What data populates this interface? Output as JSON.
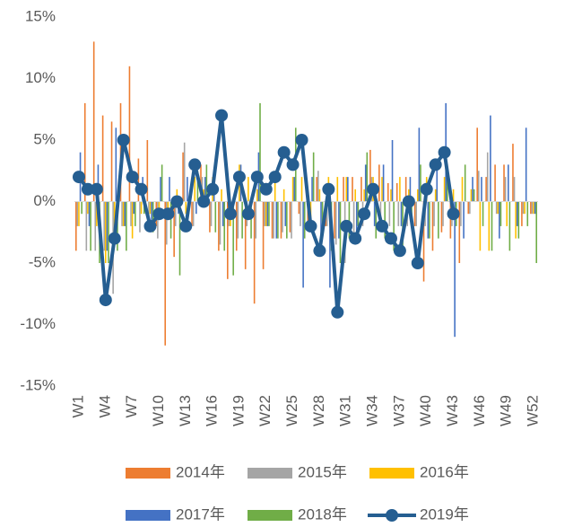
{
  "chart_data": {
    "type": "bar-line",
    "categories": [
      "W1",
      null,
      null,
      "W4",
      null,
      null,
      "W7",
      null,
      null,
      "W10",
      null,
      null,
      "W13",
      null,
      null,
      "W16",
      null,
      null,
      "W19",
      null,
      null,
      "W22",
      null,
      null,
      "W25",
      null,
      null,
      "W28",
      null,
      null,
      "W31",
      null,
      null,
      "W34",
      null,
      null,
      "W37",
      null,
      null,
      "W40",
      null,
      null,
      "W43",
      null,
      null,
      "W46",
      null,
      null,
      "W49",
      null,
      null,
      "W52"
    ],
    "ylim": [
      -15,
      15
    ],
    "yticks": [
      {
        "value": -15,
        "label": "-15%"
      },
      {
        "value": -10,
        "label": "-10%"
      },
      {
        "value": -5,
        "label": "-5%"
      },
      {
        "value": 0,
        "label": "0%"
      },
      {
        "value": 5,
        "label": "5%"
      },
      {
        "value": 10,
        "label": "10%"
      },
      {
        "value": 15,
        "label": "15%"
      }
    ],
    "grid": false,
    "legend": "bottom",
    "series": [
      {
        "name": "2014年",
        "type": "bar",
        "color": "#ED7D31",
        "values": [
          -4,
          8,
          13,
          7,
          6.5,
          8,
          11,
          3.5,
          5,
          -2,
          -11.7,
          -4.5,
          4,
          -2,
          3,
          -2.5,
          -4,
          -6.3,
          -4,
          -5.5,
          -8.3,
          -5.5,
          -3,
          -3,
          -2.5,
          -1,
          -2,
          2,
          -2,
          -3,
          2,
          2,
          2,
          4.2,
          3,
          1.5,
          1.5,
          2,
          -2,
          -6.5,
          -4,
          -2.5,
          -3,
          -5,
          -1,
          6,
          2,
          3,
          3,
          4.7,
          -2,
          -1
        ]
      },
      {
        "name": "2015年",
        "type": "bar",
        "color": "#A5A5A5",
        "values": [
          -2,
          -4,
          -4,
          -4,
          -7.5,
          -2,
          -2,
          -2.5,
          -2,
          -3,
          -3.5,
          -2,
          4.8,
          -2,
          2,
          -2,
          -3.5,
          -2,
          -3,
          -2,
          -3,
          -2,
          -3,
          -2.5,
          -3,
          -2,
          -2.5,
          2.5,
          -2,
          -3.5,
          -5,
          -3,
          -2,
          2,
          -2,
          -2,
          -2,
          -2,
          -2,
          -2,
          -2,
          -2,
          -2,
          -2,
          -1,
          2.5,
          4,
          -1,
          2,
          2,
          -1,
          -1
        ]
      },
      {
        "name": "2016年",
        "type": "bar",
        "color": "#FFC000",
        "values": [
          -2,
          -1,
          -2,
          -5,
          -2,
          -2,
          -3,
          -1,
          -1,
          -1,
          -1,
          1,
          -1,
          2,
          1,
          2,
          1,
          -2,
          3,
          2,
          1,
          -2,
          2,
          1,
          2,
          2,
          -2,
          1,
          2,
          2,
          2,
          1,
          1,
          2,
          2,
          1,
          2,
          1,
          1,
          2,
          1,
          2,
          1,
          2,
          1,
          -4,
          -4,
          -1,
          -2,
          -3,
          -1,
          -1
        ]
      },
      {
        "name": "2017年",
        "type": "bar",
        "color": "#4472C4",
        "values": [
          4,
          -2,
          3,
          -4,
          6,
          -2,
          -1,
          2,
          -2,
          2,
          2,
          -1,
          2,
          -1,
          2,
          2,
          -2,
          -1,
          3,
          -1,
          4,
          -2,
          -3,
          -2,
          2,
          -7,
          2,
          -3,
          -7,
          -3,
          2,
          -3,
          3,
          -2,
          3,
          5,
          -2,
          2,
          6,
          -3,
          3,
          8,
          -11,
          -3,
          2,
          2,
          7,
          -3,
          3,
          -2,
          6,
          -1
        ]
      },
      {
        "name": "2018年",
        "type": "bar",
        "color": "#70AD47",
        "values": [
          -1,
          -4,
          -5,
          -5,
          -4,
          -4,
          -2,
          -1,
          -2.5,
          3,
          -3,
          -6,
          -1,
          2.5,
          3,
          -2.5,
          -4,
          -6,
          -3,
          -3,
          8,
          -2,
          -3,
          -3,
          6,
          -3,
          4,
          -2,
          -4,
          -5,
          -3,
          -2,
          4,
          -3,
          -3,
          -4,
          -4,
          -2,
          3,
          -3,
          -3,
          2,
          -2,
          3,
          1,
          -2,
          -4,
          -2,
          -4,
          -3,
          -2,
          -5
        ]
      },
      {
        "name": "2019年",
        "type": "line",
        "color": "#255E91",
        "values": [
          2,
          1,
          1,
          -8,
          -3,
          5,
          2,
          1,
          -2,
          -1,
          -1,
          0,
          -2,
          3,
          0,
          1,
          7,
          -1,
          2,
          -1,
          2,
          1,
          2,
          4,
          3,
          5,
          -2,
          -4,
          1,
          -9,
          -2,
          -3,
          -1,
          1,
          -2,
          -3,
          -4,
          0,
          -5,
          1,
          3,
          4,
          -1,
          null,
          null,
          null,
          null,
          null,
          null,
          null,
          null,
          null
        ]
      }
    ]
  }
}
